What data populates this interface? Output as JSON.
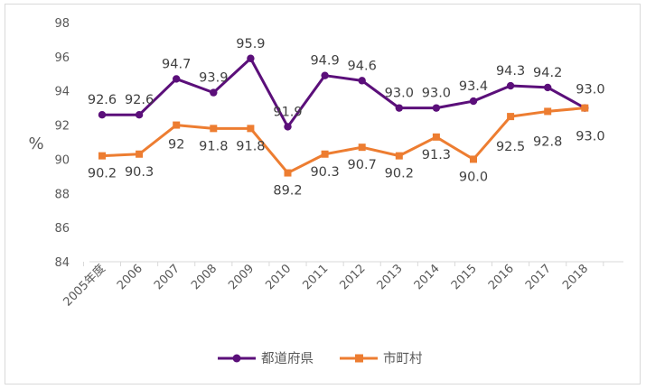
{
  "chart_data": {
    "type": "line",
    "categories": [
      "2005年度",
      "2006",
      "2007",
      "2008",
      "2009",
      "2010",
      "2011",
      "2012",
      "2013",
      "2014",
      "2015",
      "2016",
      "2017",
      "2018"
    ],
    "ylabel": "%",
    "ylim": [
      84,
      98
    ],
    "yticks": [
      84,
      86,
      88,
      90,
      92,
      94,
      96,
      98
    ],
    "grid": false,
    "legend_position": "bottom",
    "series": [
      {
        "name": "都道府県",
        "color": "#5b0f7a",
        "marker": "circle",
        "values": [
          92.6,
          92.6,
          94.7,
          93.9,
          95.9,
          91.9,
          94.9,
          94.6,
          93.0,
          93.0,
          93.4,
          94.3,
          94.2,
          93.0
        ],
        "labels": [
          "92.6",
          "92.6",
          "94.7",
          "93.9",
          "95.9",
          "91.9",
          "94.9",
          "94.6",
          "93.0",
          "93.0",
          "93.4",
          "94.3",
          "94.2",
          "93.0"
        ]
      },
      {
        "name": "市町村",
        "color": "#ed7d31",
        "marker": "square",
        "values": [
          90.2,
          90.3,
          92,
          91.8,
          91.8,
          89.2,
          90.3,
          90.7,
          90.2,
          91.3,
          90.0,
          92.5,
          92.8,
          93.0
        ],
        "labels": [
          "90.2",
          "90.3",
          "92",
          "91.8",
          "91.8",
          "89.2",
          "90.3",
          "90.7",
          "90.2",
          "91.3",
          "90.0",
          "92.5",
          "92.8",
          "93.0"
        ]
      }
    ]
  }
}
